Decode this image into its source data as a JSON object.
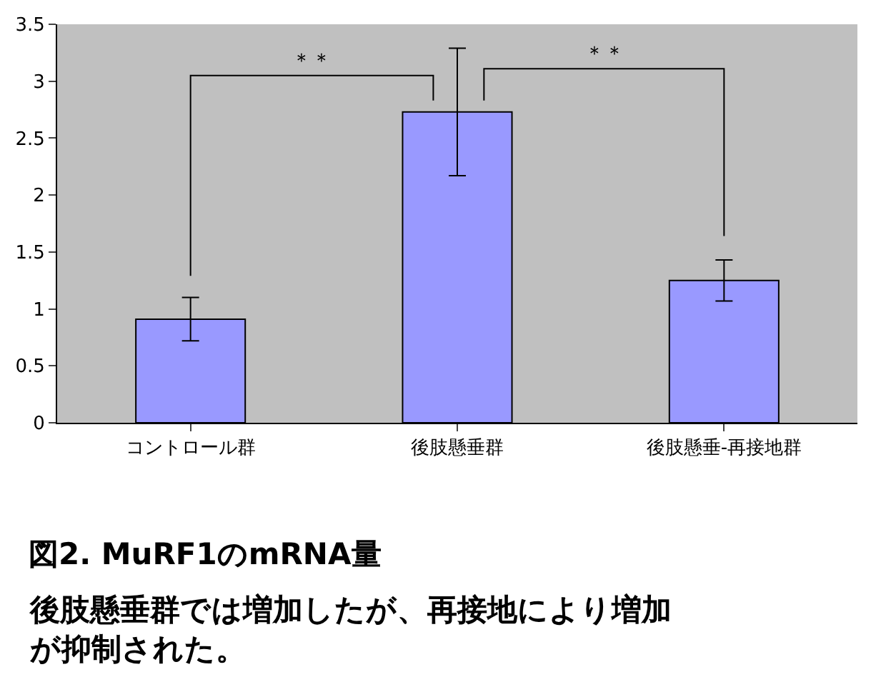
{
  "chart_data": {
    "type": "bar",
    "title": "図2. MuRF1のmRNA量",
    "subtitle": "後肢懸垂群では増加したが、再接地により増加が抑制された。",
    "categories": [
      "コントロール群",
      "後肢懸垂群",
      "後肢懸垂-再接地群"
    ],
    "values": [
      0.91,
      2.73,
      1.25
    ],
    "errors": [
      0.19,
      0.56,
      0.18
    ],
    "color": "#9999ff",
    "ylim": [
      0,
      3.5
    ],
    "yticks": [
      0,
      0.5,
      1,
      1.5,
      2,
      2.5,
      3,
      3.5
    ],
    "grid": false,
    "legend": false,
    "annotations": [
      "＊＊",
      "＊＊"
    ]
  }
}
